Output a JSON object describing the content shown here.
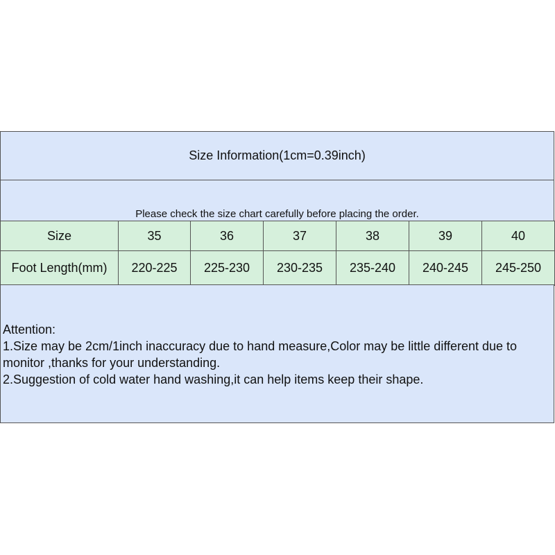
{
  "title": "Size Information(1cm=0.39inch)",
  "note": "Please check the size chart carefully before placing the order.",
  "table": {
    "rows": [
      {
        "label": "Size",
        "values": [
          "35",
          "36",
          "37",
          "38",
          "39",
          "40"
        ]
      },
      {
        "label": "Foot Length(mm)",
        "values": [
          "220-225",
          "225-230",
          "230-235",
          "235-240",
          "240-245",
          "245-250"
        ]
      }
    ]
  },
  "attention": {
    "heading": "Attention:",
    "lines": [
      "1.Size may be 2cm/1inch inaccuracy due to hand measure,Color may be little different due to monitor ,thanks for your understanding.",
      "2.Suggestion of cold water hand washing,it can help items keep their shape."
    ]
  },
  "colors": {
    "header_bg": "#dae6fa",
    "table_bg": "#d6f0dc",
    "border": "#555555"
  }
}
